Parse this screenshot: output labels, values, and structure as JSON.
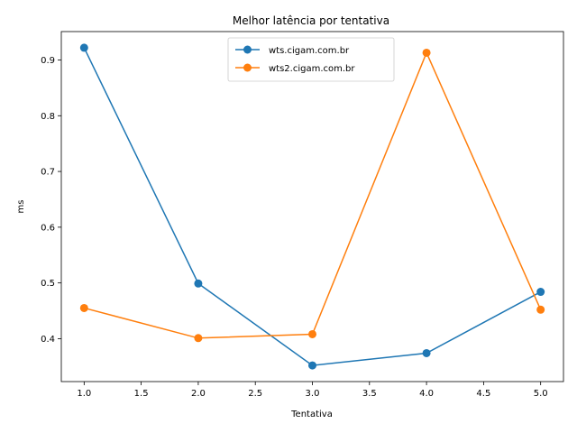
{
  "chart_data": {
    "type": "line",
    "title": "Melhor latência por tentativa",
    "xlabel": "Tentativa",
    "ylabel": "ms",
    "xlim": [
      0.8,
      5.2
    ],
    "ylim": [
      0.323,
      0.951
    ],
    "xticks": [
      1.0,
      1.5,
      2.0,
      2.5,
      3.0,
      3.5,
      4.0,
      4.5,
      5.0
    ],
    "xtick_labels": [
      "1.0",
      "1.5",
      "2.0",
      "2.5",
      "3.0",
      "3.5",
      "4.0",
      "4.5",
      "5.0"
    ],
    "yticks": [
      0.4,
      0.5,
      0.6,
      0.7,
      0.8,
      0.9
    ],
    "ytick_labels": [
      "0.4",
      "0.5",
      "0.6",
      "0.7",
      "0.8",
      "0.9"
    ],
    "grid": false,
    "legend_position": "top-center",
    "x": [
      1,
      2,
      3,
      4,
      5
    ],
    "series": [
      {
        "name": "wts.cigam.com.br",
        "color": "#1f77b4",
        "values": [
          0.922,
          0.499,
          0.352,
          0.374,
          0.484
        ]
      },
      {
        "name": "wts2.cigam.com.br",
        "color": "#ff7f0e",
        "values": [
          0.455,
          0.401,
          0.408,
          0.913,
          0.452
        ]
      }
    ]
  }
}
